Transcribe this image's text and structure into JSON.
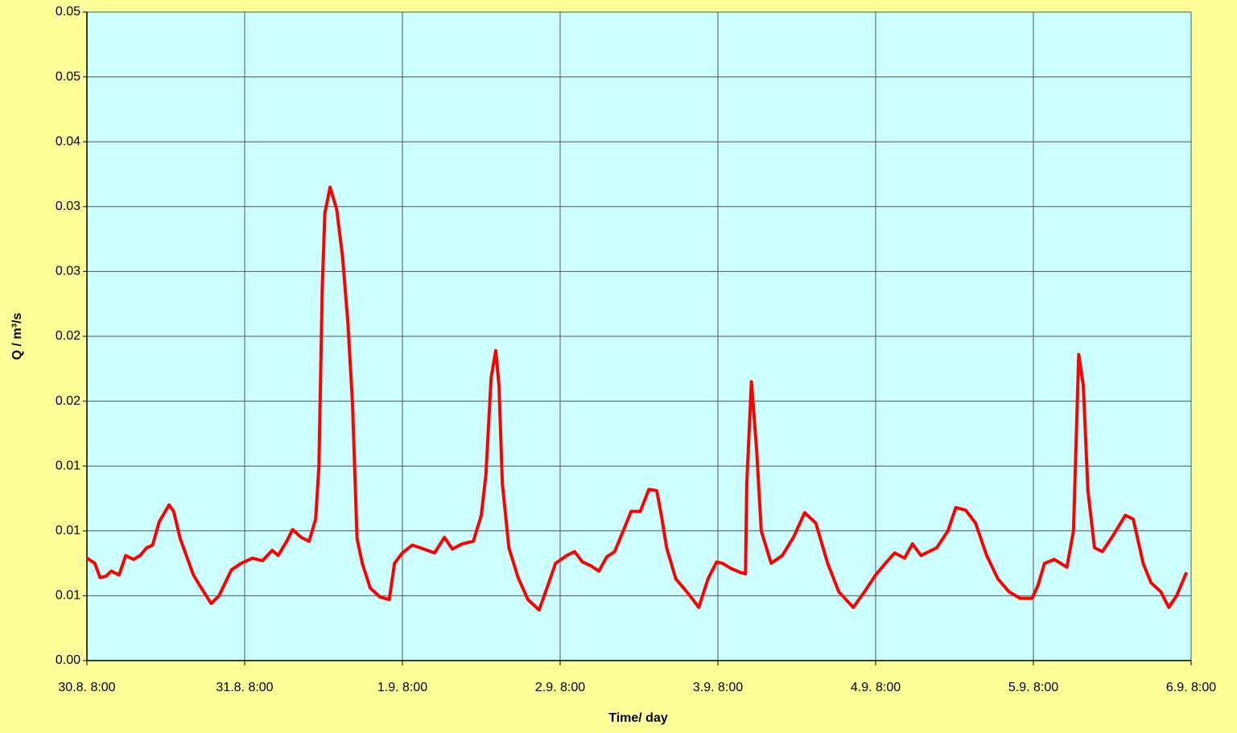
{
  "chart_data": {
    "type": "line",
    "x_label": "Time/ day",
    "y_label": "Q / m³/s",
    "xlim": [
      0,
      168
    ],
    "xticks": [
      {
        "value": 0,
        "label": "30.8. 8:00"
      },
      {
        "value": 24,
        "label": "31.8. 8:00"
      },
      {
        "value": 48,
        "label": "1.9. 8:00"
      },
      {
        "value": 72,
        "label": "2.9. 8:00"
      },
      {
        "value": 96,
        "label": "3.9. 8:00"
      },
      {
        "value": 120,
        "label": "4.9. 8:00"
      },
      {
        "value": 144,
        "label": "5.9. 8:00"
      },
      {
        "value": 168,
        "label": "6.9. 8:00"
      }
    ],
    "ylim": [
      0,
      0.05
    ],
    "yticks": [
      {
        "value": 0,
        "label": "0.00"
      },
      {
        "value": 0.005,
        "label": "0.01"
      },
      {
        "value": 0.01,
        "label": "0.01"
      },
      {
        "value": 0.015,
        "label": "0.01"
      },
      {
        "value": 0.02,
        "label": "0.02"
      },
      {
        "value": 0.025,
        "label": "0.02"
      },
      {
        "value": 0.03,
        "label": "0.03"
      },
      {
        "value": 0.035,
        "label": "0.03"
      },
      {
        "value": 0.04,
        "label": "0.04"
      },
      {
        "value": 0.045,
        "label": "0.05"
      },
      {
        "value": 0.05,
        "label": "0.05"
      }
    ],
    "grid": true,
    "x": [
      0,
      1.2,
      2.0,
      2.9,
      3.7,
      4.9,
      5.9,
      7.1,
      8.1,
      9.1,
      10.0,
      11.0,
      12.5,
      13.2,
      14.2,
      15.2,
      16.2,
      17.4,
      18.9,
      20.1,
      22.0,
      23.5,
      25.2,
      26.7,
      28.2,
      29.1,
      30.4,
      31.3,
      32.6,
      33.8,
      34.8,
      35.3,
      35.8,
      36.2,
      37.0,
      38.0,
      38.9,
      39.7,
      40.4,
      41.1,
      41.9,
      43.1,
      44.6,
      46.0,
      46.8,
      48.0,
      49.5,
      50.7,
      52.9,
      54.4,
      55.6,
      57.1,
      58.8,
      60.0,
      60.7,
      61.5,
      62.2,
      62.7,
      63.2,
      64.2,
      65.6,
      67.1,
      68.8,
      70.0,
      71.3,
      73.0,
      74.2,
      75.4,
      76.7,
      77.9,
      79.1,
      80.3,
      81.6,
      82.8,
      84.2,
      85.5,
      86.7,
      87.4,
      88.2,
      89.6,
      91.6,
      93.1,
      94.5,
      95.8,
      96.7,
      98.0,
      99.4,
      100.2,
      100.4,
      101.1,
      101.9,
      102.6,
      104.1,
      105.8,
      107.5,
      109.2,
      110.9,
      112.7,
      114.4,
      116.6,
      118.3,
      120.0,
      121.5,
      122.9,
      124.4,
      125.6,
      126.9,
      129.3,
      131.0,
      132.2,
      133.7,
      135.2,
      136.9,
      138.6,
      140.3,
      142.0,
      143.8,
      144.7,
      145.7,
      147.2,
      149.1,
      150.1,
      150.9,
      151.6,
      152.3,
      153.3,
      154.5,
      156.2,
      158.0,
      159.2,
      160.7,
      161.9,
      163.4,
      164.6,
      165.8,
      167.3
    ],
    "series": [
      {
        "color": "#ff0000",
        "values": [
          0.0079,
          0.0075,
          0.0064,
          0.0065,
          0.0069,
          0.0066,
          0.0081,
          0.0078,
          0.0081,
          0.0087,
          0.0089,
          0.0107,
          0.012,
          0.0115,
          0.0094,
          0.008,
          0.0066,
          0.0056,
          0.0044,
          0.005,
          0.007,
          0.0075,
          0.0079,
          0.0077,
          0.0085,
          0.0081,
          0.0092,
          0.0101,
          0.0095,
          0.0092,
          0.0109,
          0.015,
          0.0286,
          0.0345,
          0.0365,
          0.0348,
          0.0311,
          0.0261,
          0.0199,
          0.0094,
          0.0075,
          0.0056,
          0.0049,
          0.0047,
          0.0075,
          0.0083,
          0.0089,
          0.0087,
          0.0083,
          0.0095,
          0.0086,
          0.009,
          0.0092,
          0.0112,
          0.0143,
          0.0218,
          0.0239,
          0.0212,
          0.0137,
          0.0087,
          0.0064,
          0.0047,
          0.0039,
          0.0056,
          0.0075,
          0.0081,
          0.0084,
          0.0076,
          0.0073,
          0.0069,
          0.008,
          0.0084,
          0.01,
          0.0115,
          0.0115,
          0.0132,
          0.0131,
          0.0112,
          0.0087,
          0.0063,
          0.0051,
          0.0041,
          0.0063,
          0.0076,
          0.0075,
          0.0071,
          0.0068,
          0.0067,
          0.0137,
          0.0215,
          0.0162,
          0.01,
          0.0075,
          0.0081,
          0.0095,
          0.0114,
          0.0106,
          0.0075,
          0.0053,
          0.0041,
          0.0053,
          0.0066,
          0.0075,
          0.0083,
          0.0079,
          0.009,
          0.0081,
          0.0087,
          0.01,
          0.0118,
          0.0116,
          0.0106,
          0.0081,
          0.0063,
          0.0053,
          0.0048,
          0.0048,
          0.0058,
          0.0075,
          0.0078,
          0.0072,
          0.01,
          0.0236,
          0.0212,
          0.0131,
          0.0087,
          0.0084,
          0.0097,
          0.0112,
          0.0109,
          0.0075,
          0.006,
          0.0053,
          0.0041,
          0.005,
          0.0068
        ]
      }
    ]
  }
}
